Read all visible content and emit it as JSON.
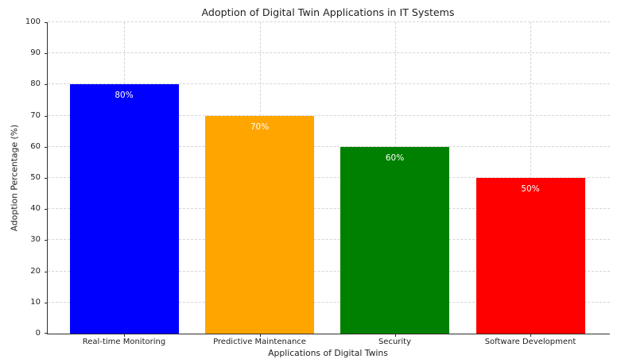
{
  "figure": {
    "title": "Adoption of Digital Twin Applications in IT Systems"
  },
  "chart_data": {
    "type": "bar",
    "title": "Adoption of Digital Twin Applications in IT Systems",
    "xlabel": "Applications of Digital Twins",
    "ylabel": "Adoption Percentage (%)",
    "categories": [
      "Real-time Monitoring",
      "Predictive Maintenance",
      "Security",
      "Software Development"
    ],
    "values": [
      80,
      70,
      60,
      50
    ],
    "bar_labels": [
      "80%",
      "70%",
      "60%",
      "50%"
    ],
    "bar_colors": [
      "#0000ff",
      "#ffa500",
      "#008000",
      "#ff0000"
    ],
    "bar_label_color": "#ffffff",
    "ylim": [
      0,
      100
    ],
    "yticks": [
      0,
      10,
      20,
      30,
      40,
      50,
      60,
      70,
      80,
      90,
      100
    ],
    "grid": {
      "visible": true,
      "axis": "both",
      "linestyle": "dashed",
      "color": "#d4d4d4"
    },
    "legend": null,
    "background": "#ffffff"
  }
}
